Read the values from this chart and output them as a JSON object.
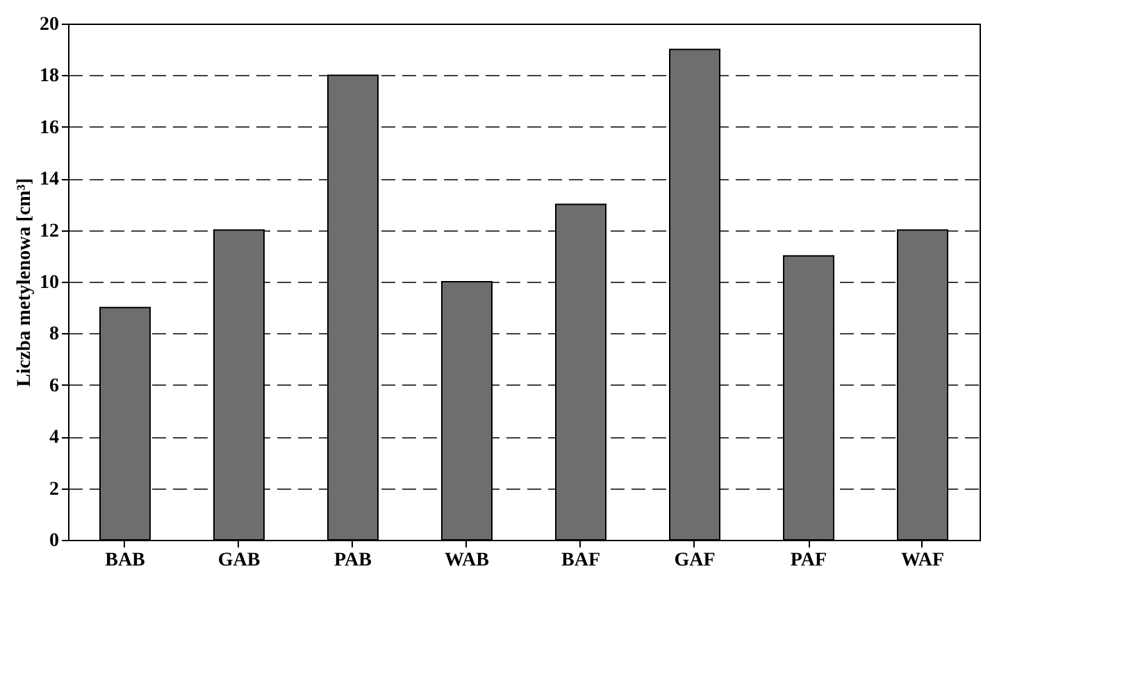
{
  "chart_data": {
    "type": "bar",
    "ylabel": "Liczba metylenowa [cm³]",
    "categories": [
      "BAB",
      "GAB",
      "PAB",
      "WAB",
      "BAF",
      "GAF",
      "PAF",
      "WAF"
    ],
    "values": [
      9,
      12,
      18,
      10,
      13,
      19,
      11,
      12
    ],
    "color": "#6e6e6e",
    "ylim": [
      0,
      20
    ],
    "yticks": [
      0,
      2,
      4,
      6,
      8,
      10,
      12,
      14,
      16,
      18,
      20
    ],
    "grid": "y",
    "line_style": "dashed"
  }
}
